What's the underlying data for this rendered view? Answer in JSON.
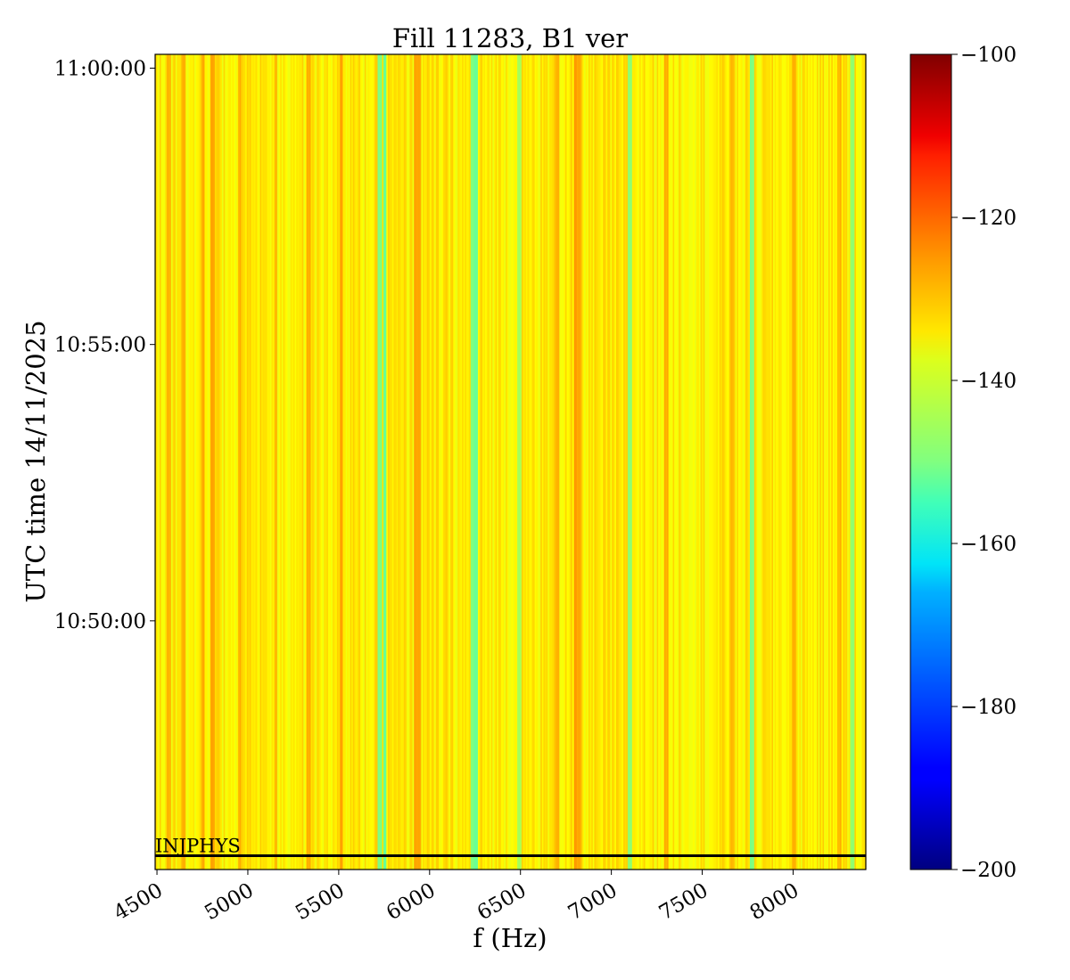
{
  "chart_data": {
    "type": "heatmap",
    "title": "Fill 11283, B1 ver",
    "xlabel": "f (Hz)",
    "ylabel": "UTC time 14/11/2025",
    "xlim": [
      4490,
      8400
    ],
    "x_ticks": [
      4500,
      5000,
      5500,
      6000,
      6500,
      7000,
      7500,
      8000
    ],
    "x_tick_labels": [
      "4500",
      "5000",
      "5500",
      "6000",
      "6500",
      "7000",
      "7500",
      "8000"
    ],
    "y_ticks": [
      "10:50:00",
      "10:55:00",
      "11:00:00"
    ],
    "y_range": [
      "10:45:30",
      "11:00:15"
    ],
    "colorbar": {
      "colormap": "jet",
      "vmin": -200,
      "vmax": -100,
      "ticks": [
        -100,
        -120,
        -140,
        -160,
        -180,
        -200
      ],
      "tick_labels": [
        "−100",
        "−120",
        "−140",
        "−160",
        "−180",
        "−200"
      ]
    },
    "base_level": -136,
    "features": [
      {
        "f": 4560,
        "level": -131
      },
      {
        "f": 4640,
        "level": -130
      },
      {
        "f": 4750,
        "level": -129
      },
      {
        "f": 4800,
        "level": -128
      },
      {
        "f": 4950,
        "level": -130
      },
      {
        "f": 5150,
        "level": -131
      },
      {
        "f": 5330,
        "level": -130
      },
      {
        "f": 5510,
        "level": -128
      },
      {
        "f": 5720,
        "level": -150
      },
      {
        "f": 5750,
        "level": -152
      },
      {
        "f": 5920,
        "level": -128
      },
      {
        "f": 5940,
        "level": -129
      },
      {
        "f": 6230,
        "level": -150
      },
      {
        "f": 6250,
        "level": -152
      },
      {
        "f": 6490,
        "level": -146
      },
      {
        "f": 6700,
        "level": -130
      },
      {
        "f": 6800,
        "level": -128
      },
      {
        "f": 6820,
        "level": -129
      },
      {
        "f": 7100,
        "level": -148
      },
      {
        "f": 7300,
        "level": -130
      },
      {
        "f": 7660,
        "level": -131
      },
      {
        "f": 7770,
        "level": -150
      },
      {
        "f": 8000,
        "level": -130
      },
      {
        "f": 8250,
        "level": -130
      },
      {
        "f": 8320,
        "level": -148
      }
    ],
    "annotation": {
      "text": "INJPHYS",
      "time": "10:45:45"
    }
  }
}
